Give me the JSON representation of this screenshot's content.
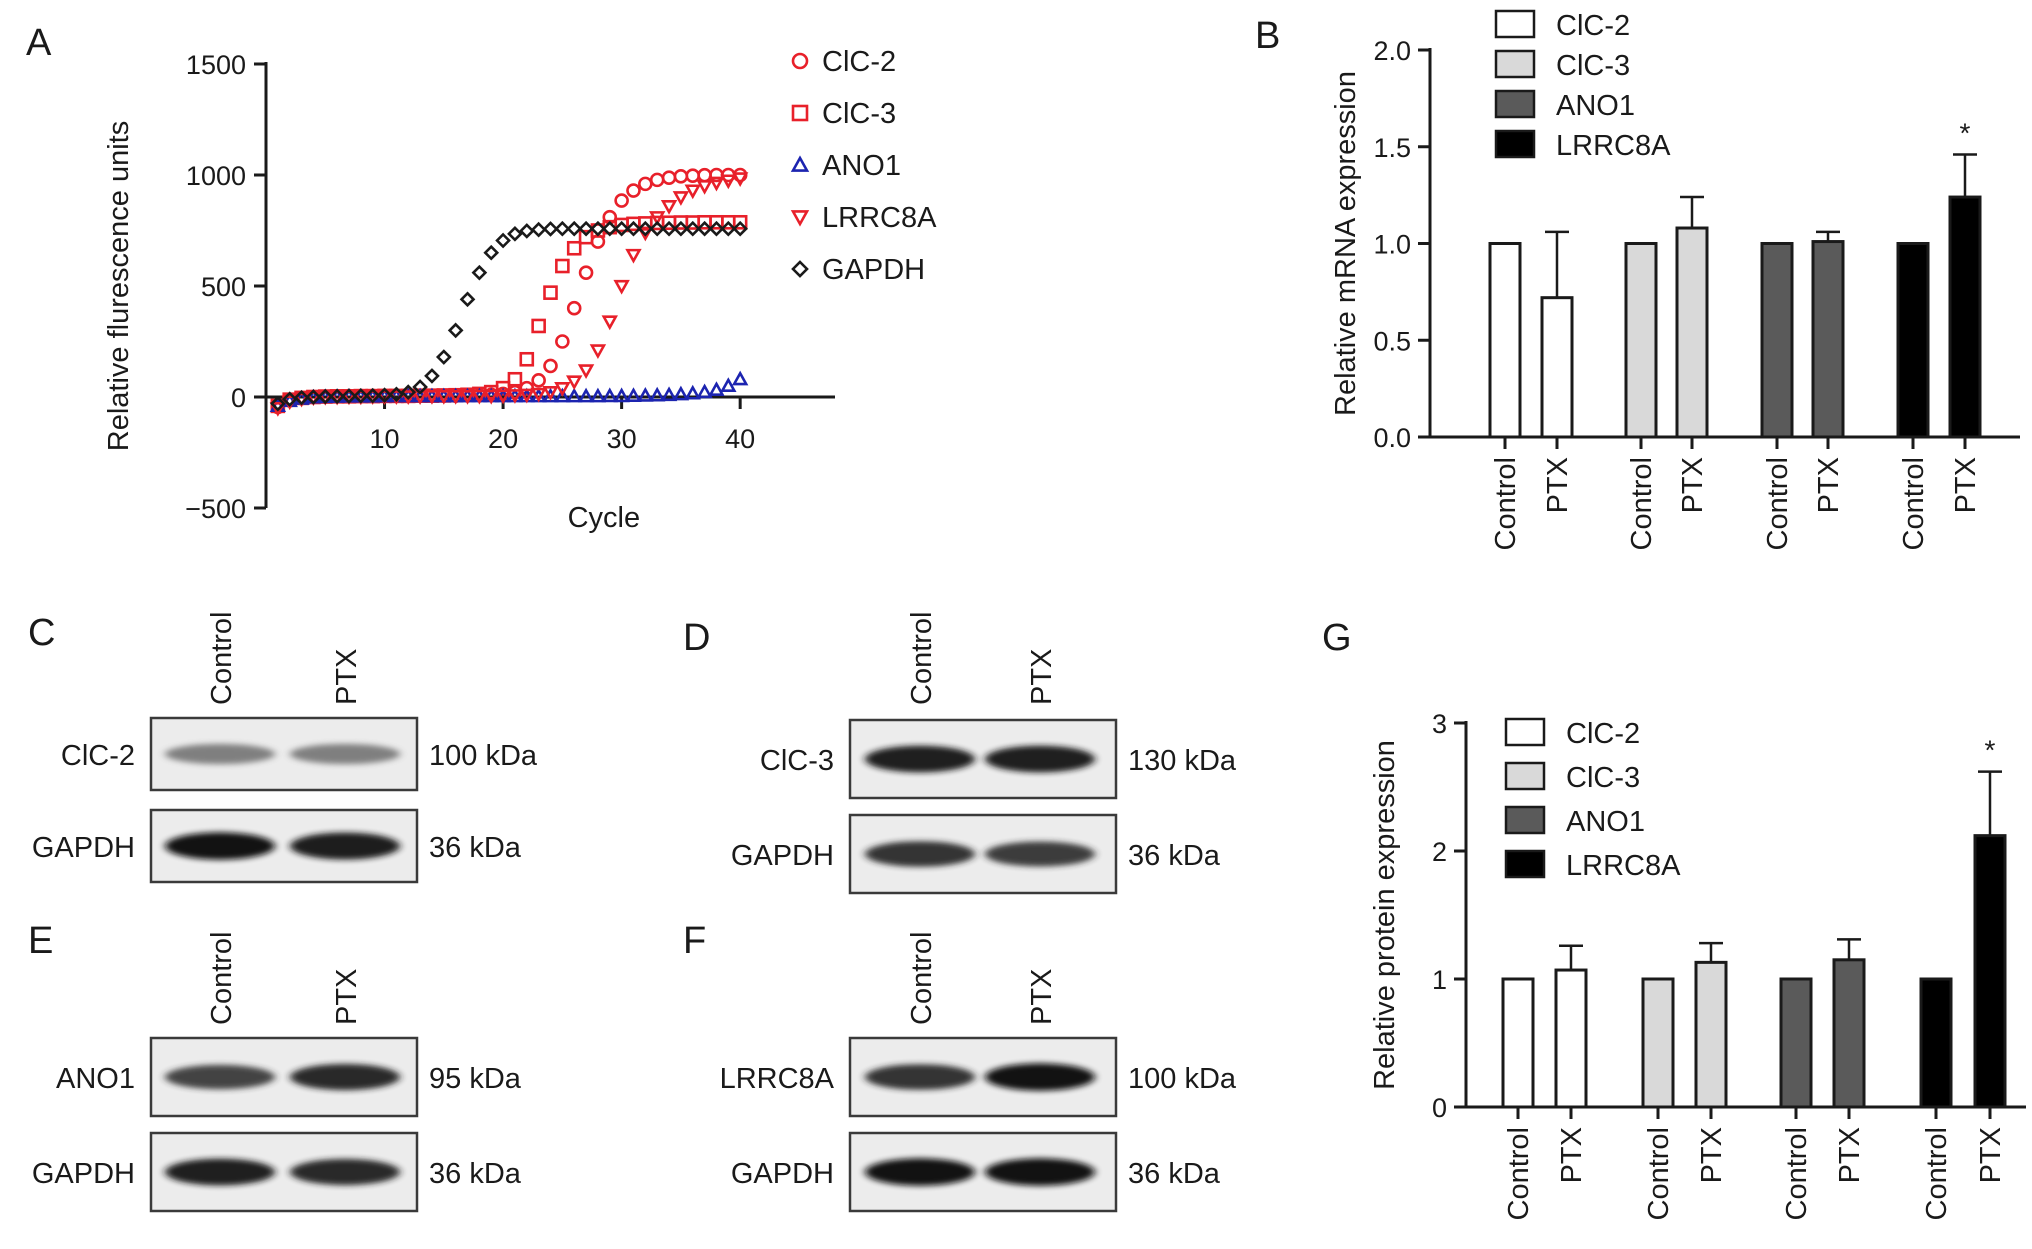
{
  "panels": {
    "A": "A",
    "B": "B",
    "C": "C",
    "D": "D",
    "E": "E",
    "F": "F",
    "G": "G"
  },
  "chart_data": [
    {
      "panel": "A",
      "type": "scatter",
      "xlabel": "Cycle",
      "ylabel": "Relative flurescence units",
      "xlim": [
        0,
        48
      ],
      "ylim": [
        -500,
        1500
      ],
      "xticks": [
        10,
        20,
        30,
        40
      ],
      "yticks": [
        1500,
        1000,
        500,
        0,
        -500
      ],
      "ytick_labels": [
        "1500",
        "1000",
        "500",
        "0",
        "−500"
      ],
      "series": [
        {
          "name": "ClC-2",
          "marker": "circle",
          "color": "#e8202a",
          "x": [
            1,
            2,
            3,
            4,
            5,
            6,
            7,
            8,
            9,
            10,
            11,
            12,
            13,
            14,
            15,
            16,
            17,
            18,
            19,
            20,
            21,
            22,
            23,
            24,
            25,
            26,
            27,
            28,
            29,
            30,
            31,
            32,
            33,
            34,
            35,
            36,
            37,
            38,
            39,
            40
          ],
          "y": [
            -45,
            -15,
            -5,
            0,
            2,
            3,
            4,
            4,
            5,
            5,
            5,
            5,
            6,
            6,
            6,
            6,
            7,
            8,
            10,
            14,
            22,
            40,
            75,
            140,
            250,
            400,
            560,
            700,
            810,
            885,
            930,
            960,
            978,
            988,
            994,
            997,
            999,
            1000,
            1000,
            1000
          ]
        },
        {
          "name": "ClC-3",
          "marker": "square",
          "color": "#e8202a",
          "x": [
            1,
            2,
            3,
            4,
            5,
            6,
            7,
            8,
            9,
            10,
            11,
            12,
            13,
            14,
            15,
            16,
            17,
            18,
            19,
            20,
            21,
            22,
            23,
            24,
            25,
            26,
            27,
            28,
            29,
            30,
            31,
            32,
            33,
            34,
            35,
            36,
            37,
            38,
            39,
            40
          ],
          "y": [
            -40,
            -12,
            -4,
            0,
            2,
            3,
            3,
            4,
            4,
            5,
            5,
            5,
            6,
            6,
            7,
            8,
            10,
            14,
            22,
            40,
            80,
            170,
            320,
            470,
            590,
            670,
            720,
            750,
            765,
            775,
            780,
            782,
            784,
            785,
            786,
            786,
            787,
            787,
            787,
            787
          ]
        },
        {
          "name": "ANO1",
          "marker": "triangle-up",
          "color": "#1c24b0",
          "x": [
            1,
            2,
            3,
            4,
            5,
            6,
            7,
            8,
            9,
            10,
            11,
            12,
            13,
            14,
            15,
            16,
            17,
            18,
            19,
            20,
            21,
            22,
            23,
            24,
            25,
            26,
            27,
            28,
            29,
            30,
            31,
            32,
            33,
            34,
            35,
            36,
            37,
            38,
            39,
            40
          ],
          "y": [
            -40,
            -18,
            -8,
            -2,
            0,
            1,
            2,
            2,
            2,
            3,
            3,
            3,
            3,
            3,
            3,
            3,
            3,
            3,
            3,
            3,
            3,
            3,
            3,
            3,
            3,
            3,
            3,
            3,
            4,
            4,
            5,
            6,
            7,
            9,
            12,
            16,
            22,
            32,
            50,
            80
          ]
        },
        {
          "name": "LRRC8A",
          "marker": "triangle-down",
          "color": "#e8202a",
          "x": [
            1,
            2,
            3,
            4,
            5,
            6,
            7,
            8,
            9,
            10,
            11,
            12,
            13,
            14,
            15,
            16,
            17,
            18,
            19,
            20,
            21,
            22,
            23,
            24,
            25,
            26,
            27,
            28,
            29,
            30,
            31,
            32,
            33,
            34,
            35,
            36,
            37,
            38,
            39,
            40
          ],
          "y": [
            -50,
            -20,
            -8,
            -2,
            0,
            1,
            2,
            2,
            3,
            3,
            3,
            3,
            3,
            4,
            4,
            4,
            4,
            5,
            5,
            6,
            8,
            10,
            14,
            22,
            40,
            70,
            120,
            210,
            340,
            500,
            640,
            740,
            810,
            860,
            900,
            930,
            950,
            965,
            975,
            985
          ]
        },
        {
          "name": "GAPDH",
          "marker": "diamond",
          "color": "#1a1a1a",
          "x": [
            1,
            2,
            3,
            4,
            5,
            6,
            7,
            8,
            9,
            10,
            11,
            12,
            13,
            14,
            15,
            16,
            17,
            18,
            19,
            20,
            21,
            22,
            23,
            24,
            25,
            26,
            27,
            28,
            29,
            30,
            31,
            32,
            33,
            34,
            35,
            36,
            37,
            38,
            39,
            40
          ],
          "y": [
            -30,
            -10,
            -3,
            0,
            2,
            3,
            4,
            5,
            6,
            8,
            12,
            22,
            45,
            95,
            180,
            300,
            440,
            560,
            650,
            705,
            735,
            748,
            754,
            757,
            758,
            758,
            758,
            758,
            758,
            758,
            758,
            758,
            758,
            758,
            758,
            758,
            758,
            758,
            758,
            758
          ]
        }
      ]
    },
    {
      "panel": "B",
      "type": "bar",
      "ylabel": "Relative mRNA expression",
      "ylim": [
        0,
        2.0
      ],
      "yticks": [
        "0.0",
        "0.5",
        "1.0",
        "1.5",
        "2.0"
      ],
      "categories": [
        "Control",
        "PTX",
        "Control",
        "PTX",
        "Control",
        "PTX",
        "Control",
        "PTX"
      ],
      "values": [
        1.0,
        0.72,
        1.0,
        1.08,
        1.0,
        1.01,
        1.0,
        1.24
      ],
      "errors": [
        0,
        0.34,
        0,
        0.16,
        0,
        0.05,
        0,
        0.22
      ],
      "groups": [
        "ClC-2",
        "ClC-3",
        "ANO1",
        "LRRC8A"
      ],
      "fills": [
        "#ffffff",
        "#d9d9d9",
        "#5a5a5a",
        "#000000"
      ],
      "significance": [
        null,
        null,
        null,
        null,
        null,
        null,
        null,
        "*"
      ],
      "legend": [
        "ClC-2",
        "ClC-3",
        "ANO1",
        "LRRC8A"
      ]
    },
    {
      "panel": "G",
      "type": "bar",
      "ylabel": "Relative protein expression",
      "ylim": [
        0,
        3
      ],
      "yticks": [
        "0",
        "1",
        "2",
        "3"
      ],
      "categories": [
        "Control",
        "PTX",
        "Control",
        "PTX",
        "Control",
        "PTX",
        "Control",
        "PTX"
      ],
      "values": [
        1.0,
        1.07,
        1.0,
        1.13,
        1.0,
        1.15,
        1.0,
        2.12
      ],
      "errors": [
        0,
        0.19,
        0,
        0.15,
        0,
        0.16,
        0,
        0.5
      ],
      "groups": [
        "ClC-2",
        "ClC-3",
        "ANO1",
        "LRRC8A"
      ],
      "fills": [
        "#ffffff",
        "#d9d9d9",
        "#5a5a5a",
        "#000000"
      ],
      "significance": [
        null,
        null,
        null,
        null,
        null,
        null,
        null,
        "*"
      ],
      "legend": [
        "ClC-2",
        "ClC-3",
        "ANO1",
        "LRRC8A"
      ]
    }
  ],
  "blots": {
    "C": {
      "lanes": [
        "Control",
        "PTX"
      ],
      "rows": [
        {
          "label": "ClC-2",
          "size": "100 kDa",
          "intensity": [
            0.35,
            0.35
          ]
        },
        {
          "label": "GAPDH",
          "size": "36 kDa",
          "intensity": [
            0.95,
            0.92
          ]
        }
      ]
    },
    "D": {
      "lanes": [
        "Control",
        "PTX"
      ],
      "rows": [
        {
          "label": "ClC-3",
          "size": "130 kDa",
          "intensity": [
            0.9,
            0.9
          ]
        },
        {
          "label": "GAPDH",
          "size": "36 kDa",
          "intensity": [
            0.8,
            0.75
          ]
        }
      ]
    },
    "E": {
      "lanes": [
        "Control",
        "PTX"
      ],
      "rows": [
        {
          "label": "ANO1",
          "size": "95 kDa",
          "intensity": [
            0.7,
            0.85
          ]
        },
        {
          "label": "GAPDH",
          "size": "36 kDa",
          "intensity": [
            0.9,
            0.85
          ]
        }
      ]
    },
    "F": {
      "lanes": [
        "Control",
        "PTX"
      ],
      "rows": [
        {
          "label": "LRRC8A",
          "size": "100 kDa",
          "intensity": [
            0.8,
            0.95
          ]
        },
        {
          "label": "GAPDH",
          "size": "36 kDa",
          "intensity": [
            0.95,
            0.95
          ]
        }
      ]
    }
  }
}
